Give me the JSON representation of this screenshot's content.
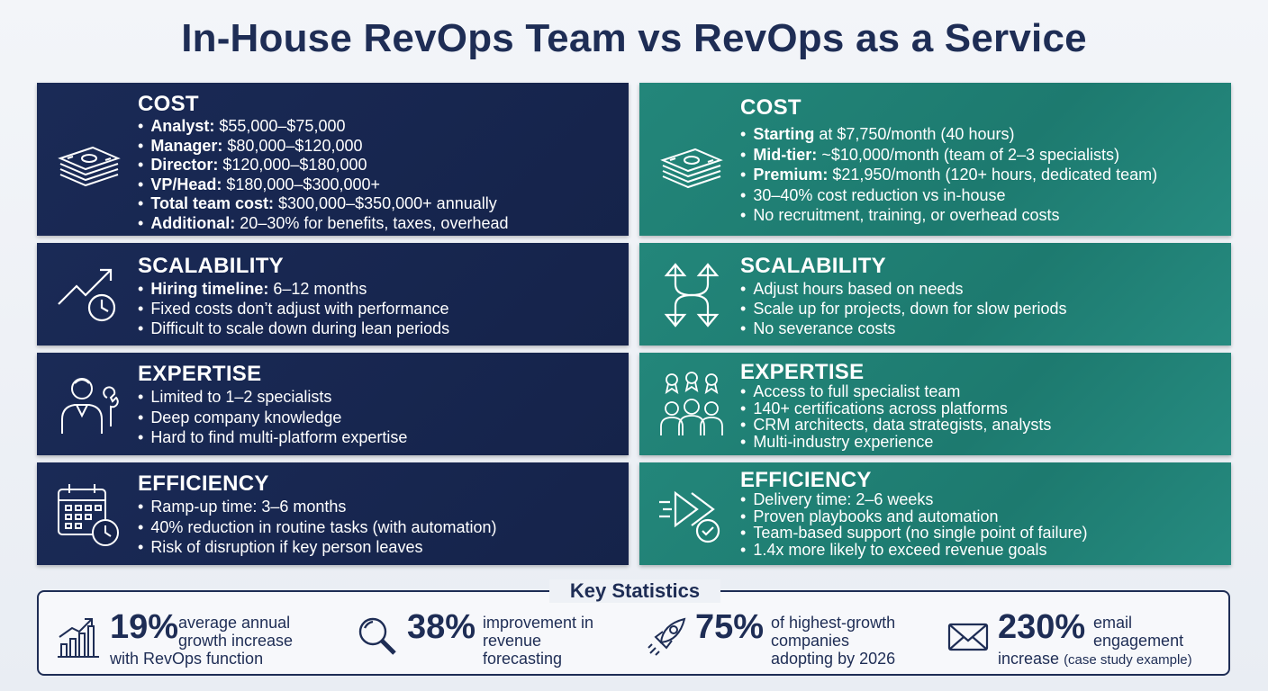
{
  "title": "In-House RevOps Team vs RevOps as a Service",
  "colors": {
    "navy": "#1a2a56",
    "teal": "#23867a",
    "title": "#1e2d55"
  },
  "in_house": {
    "cost": {
      "heading": "COST",
      "icon": "money-stack-icon",
      "items": [
        {
          "bold": "Analyst:",
          "text": " $55,000–$75,000"
        },
        {
          "bold": "Manager:",
          "text": " $80,000–$120,000"
        },
        {
          "bold": "Director:",
          "text": " $120,000–$180,000"
        },
        {
          "bold": "VP/Head:",
          "text": " $180,000–$300,000+"
        },
        {
          "bold": "Total team cost:",
          "text": " $300,000–$350,000+ annually"
        },
        {
          "bold": "Additional:",
          "text": " 20–30% for benefits, taxes, overhead"
        }
      ]
    },
    "scalability": {
      "heading": "SCALABILITY",
      "icon": "trend-clock-icon",
      "items": [
        {
          "bold": "Hiring timeline:",
          "text": " 6–12 months"
        },
        {
          "bold": "",
          "text": "Fixed costs don’t adjust with performance"
        },
        {
          "bold": "",
          "text": "Difficult to scale down during lean periods"
        }
      ]
    },
    "expertise": {
      "heading": "EXPERTISE",
      "icon": "person-wrench-icon",
      "items": [
        {
          "bold": "",
          "text": "Limited to 1–2 specialists"
        },
        {
          "bold": "",
          "text": "Deep company knowledge"
        },
        {
          "bold": "",
          "text": "Hard to find multi-platform expertise"
        }
      ]
    },
    "efficiency": {
      "heading": "EFFICIENCY",
      "icon": "calendar-clock-icon",
      "items": [
        {
          "bold": "",
          "text": "Ramp-up time: 3–6 months"
        },
        {
          "bold": "",
          "text": "40% reduction in routine tasks (with automation)"
        },
        {
          "bold": "",
          "text": "Risk of disruption if key person leaves"
        }
      ]
    }
  },
  "service": {
    "cost": {
      "heading": "COST",
      "icon": "money-stack-icon",
      "items": [
        {
          "bold": "Starting",
          "text": " at $7,750/month (40 hours)"
        },
        {
          "bold": "Mid-tier:",
          "text": " ~$10,000/month (team of 2–3 specialists)"
        },
        {
          "bold": "Premium:",
          "text": " $21,950/month (120+ hours, dedicated team)"
        },
        {
          "bold": "",
          "text": "30–40% cost reduction vs in-house"
        },
        {
          "bold": "",
          "text": "No recruitment, training, or overhead costs"
        }
      ]
    },
    "scalability": {
      "heading": "SCALABILITY",
      "icon": "scale-arrows-icon",
      "items": [
        {
          "bold": "",
          "text": "Adjust hours based on needs"
        },
        {
          "bold": "",
          "text": "Scale up for projects, down for slow periods"
        },
        {
          "bold": "",
          "text": "No severance costs"
        }
      ]
    },
    "expertise": {
      "heading": "EXPERTISE",
      "icon": "team-badges-icon",
      "items": [
        {
          "bold": "",
          "text": "Access to full specialist team"
        },
        {
          "bold": "",
          "text": "140+ certifications across platforms"
        },
        {
          "bold": "",
          "text": "CRM architects, data strategists, analysts"
        },
        {
          "bold": "",
          "text": "Multi-industry experience"
        }
      ]
    },
    "efficiency": {
      "heading": "EFFICIENCY",
      "icon": "fast-forward-check-icon",
      "items": [
        {
          "bold": "",
          "text": "Delivery time: 2–6 weeks"
        },
        {
          "bold": "",
          "text": "Proven playbooks and automation"
        },
        {
          "bold": "",
          "text": "Team-based support (no single point of failure)"
        },
        {
          "bold": "",
          "text": "1.4x more likely to exceed revenue goals"
        }
      ]
    }
  },
  "stats": {
    "title": "Key Statistics",
    "items": [
      {
        "value": "19%",
        "icon": "bar-chart-growth-icon",
        "lines": [
          "average annual",
          "growth increase",
          "with RevOps function"
        ]
      },
      {
        "value": "38%",
        "icon": "magnifier-icon",
        "lines": [
          "improvement in",
          "revenue",
          "forecasting"
        ]
      },
      {
        "value": "75%",
        "icon": "rocket-icon",
        "lines": [
          "of highest-growth",
          "companies",
          "adopting by 2026"
        ]
      },
      {
        "value": "230%",
        "icon": "envelope-icon",
        "lines": [
          "email",
          "engagement"
        ],
        "last_main": "increase",
        "last_small": "(case study example)"
      }
    ]
  }
}
